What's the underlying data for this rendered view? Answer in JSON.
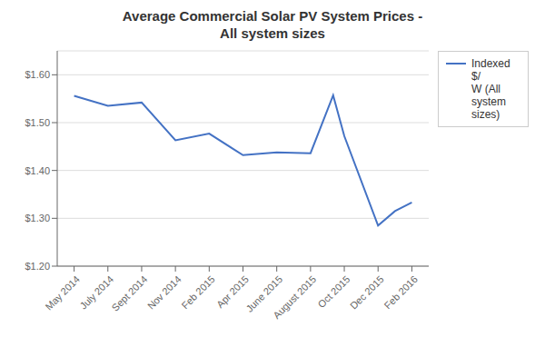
{
  "chart_data": {
    "type": "line",
    "title": "Average Commercial Solar PV System Prices -\nAll system sizes",
    "x": [
      0,
      1,
      2,
      3,
      4,
      5,
      6,
      7,
      7.67,
      8,
      9,
      9.5,
      10
    ],
    "xlim": [
      -0.5,
      10.5
    ],
    "xticks": [
      {
        "value": 0,
        "label": "May 2014"
      },
      {
        "value": 1,
        "label": "July 2014"
      },
      {
        "value": 2,
        "label": "Sept 2014"
      },
      {
        "value": 3,
        "label": "Nov 2014"
      },
      {
        "value": 4,
        "label": "Feb 2015"
      },
      {
        "value": 5,
        "label": "Apr 2015"
      },
      {
        "value": 6,
        "label": "June 2015"
      },
      {
        "value": 7,
        "label": "August 2015"
      },
      {
        "value": 8,
        "label": "Oct 2015"
      },
      {
        "value": 9,
        "label": "Dec 2015"
      },
      {
        "value": 10,
        "label": "Feb 2016"
      }
    ],
    "series": [
      {
        "name": "Indexed $/\nW (All\nsystem\nsizes)",
        "color": "#4472C4",
        "values": [
          1.556,
          1.535,
          1.542,
          1.463,
          1.477,
          1.432,
          1.438,
          1.436,
          1.557,
          1.472,
          1.285,
          1.315,
          1.333
        ]
      }
    ],
    "ylim": [
      1.2,
      1.65
    ],
    "yticks": [
      {
        "value": 1.2,
        "label": "$1.20"
      },
      {
        "value": 1.3,
        "label": "$1.30"
      },
      {
        "value": 1.4,
        "label": "$1.40"
      },
      {
        "value": 1.5,
        "label": "$1.50"
      },
      {
        "value": 1.6,
        "label": "$1.60"
      }
    ],
    "grid": "y",
    "legend": "right"
  }
}
